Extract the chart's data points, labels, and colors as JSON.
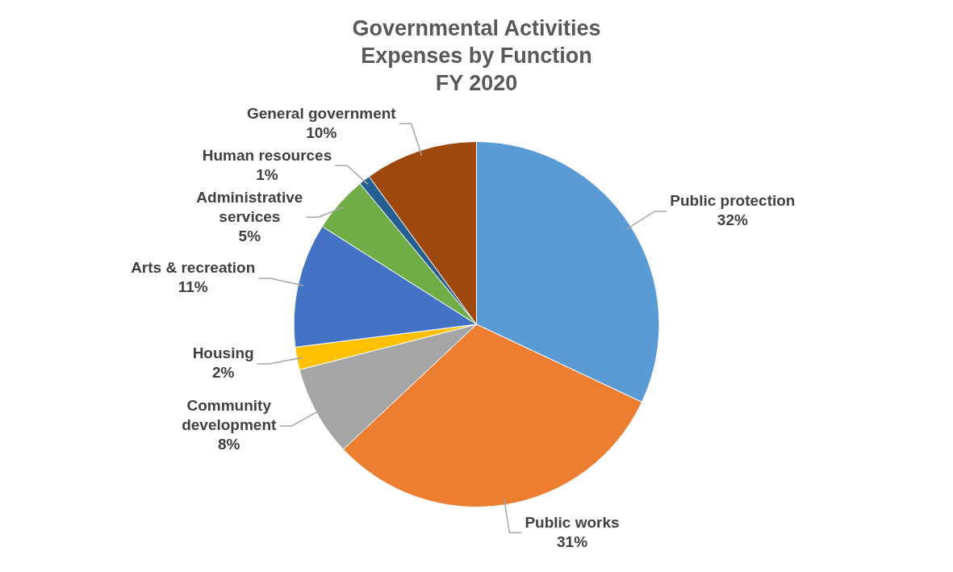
{
  "chart_data": {
    "type": "pie",
    "title": "Governmental Activities Expenses by Function",
    "subtitle": "FY 2020",
    "categories": [
      "Public protection",
      "Public works",
      "Community development",
      "Housing",
      "Arts & recreation",
      "Administrative services",
      "Human resources",
      "General government"
    ],
    "values": [
      32,
      31,
      8,
      2,
      11,
      5,
      1,
      10
    ],
    "value_labels": [
      "32%",
      "31%",
      "8%",
      "2%",
      "11%",
      "5%",
      "1%",
      "10%"
    ],
    "colors": [
      "#5b9bd5",
      "#ed7d31",
      "#a5a5a5",
      "#ffc000",
      "#4472c4",
      "#70ad47",
      "#255e91",
      "#9e480e"
    ],
    "legend": false
  }
}
